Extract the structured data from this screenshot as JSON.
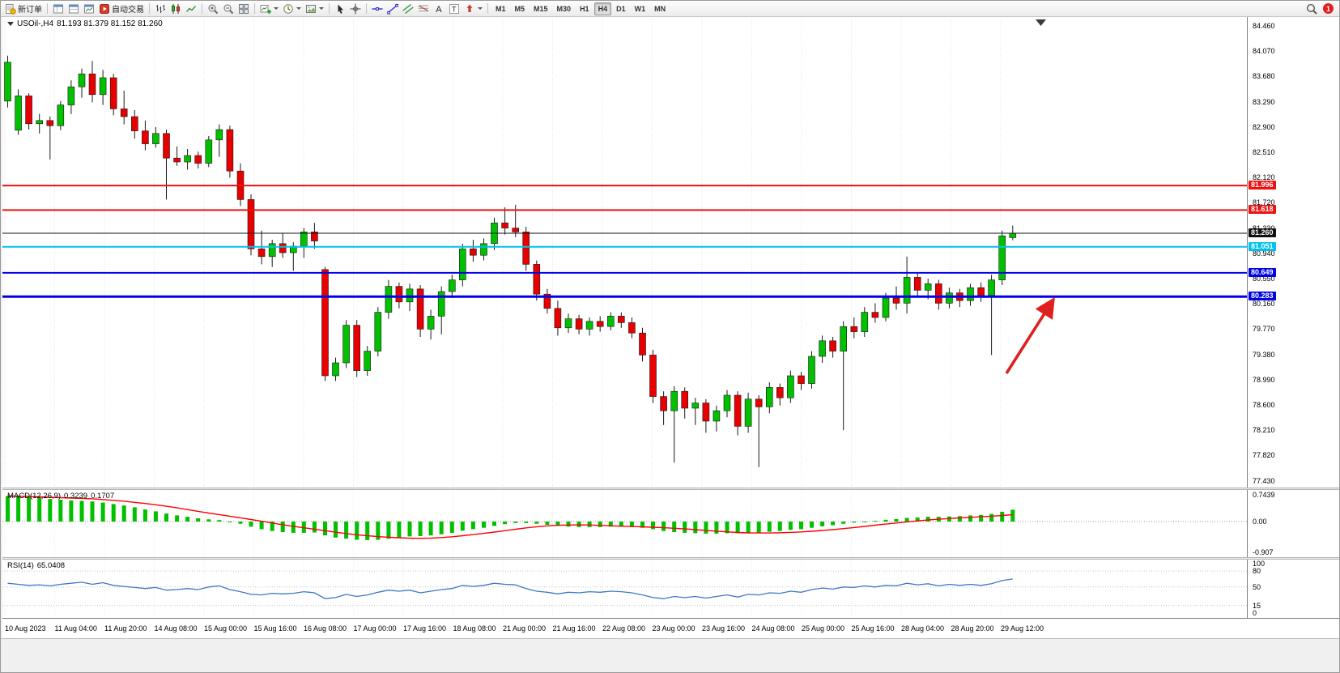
{
  "colors": {
    "candle_up": "#00C000",
    "candle_down": "#E80000",
    "macd_hist": "#00C000",
    "macd_signal": "#FF0000",
    "rsi_line": "#3C78C8",
    "arrow": "#E02020",
    "line_red": "#EE1111",
    "line_cyan": "#00C0EF",
    "line_blue": "#0000E6",
    "line_current": "#111111"
  },
  "toolbar": {
    "badge": "1",
    "items": [
      {
        "name": "new-order-button",
        "icon": "new-order",
        "label": "新订单"
      },
      {
        "name": "separator"
      },
      {
        "name": "market-watch-button",
        "icon": "window"
      },
      {
        "name": "navigator-button",
        "icon": "window2"
      },
      {
        "name": "terminal-button",
        "icon": "window3"
      },
      {
        "name": "autotrade-button",
        "icon": "autotrade",
        "label": "自动交易"
      },
      {
        "name": "separator"
      },
      {
        "name": "bar-chart-button",
        "icon": "bars"
      },
      {
        "name": "candlestick-chart-button",
        "icon": "candles"
      },
      {
        "name": "line-chart-button",
        "icon": "line"
      },
      {
        "name": "separator"
      },
      {
        "name": "zoom-in-button",
        "icon": "zoom-in"
      },
      {
        "name": "zoom-out-button",
        "icon": "zoom-out"
      },
      {
        "name": "tile-windows-button",
        "icon": "tile"
      },
      {
        "name": "separator"
      },
      {
        "name": "new-chart-button",
        "icon": "new-chart",
        "caret": true
      },
      {
        "name": "periods-button",
        "icon": "clock",
        "caret": true
      },
      {
        "name": "indicators-button",
        "icon": "template",
        "ca ret": false,
        "caret": true
      },
      {
        "name": "separator"
      },
      {
        "name": "cursor-button",
        "icon": "cursor"
      },
      {
        "name": "crosshair-button",
        "icon": "crosshair"
      },
      {
        "name": "separator"
      },
      {
        "name": "horizontal-line-button",
        "icon": "hline"
      },
      {
        "name": "trendline-button",
        "icon": "trendline"
      },
      {
        "name": "equidistant-channel-button",
        "icon": "channel"
      },
      {
        "name": "fibonacci-button",
        "icon": "fibo"
      },
      {
        "name": "text-button",
        "icon": "textA"
      },
      {
        "name": "text-label-button",
        "icon": "textT"
      },
      {
        "name": "arrows-button",
        "icon": "shapes",
        "caret": true
      },
      {
        "name": "separator"
      }
    ],
    "timeframes": [
      "M1",
      "M5",
      "M15",
      "M30",
      "H1",
      "H4",
      "D1",
      "W1",
      "MN"
    ],
    "active_timeframe": "H4"
  },
  "header": {
    "symbol": "USOil-,H4",
    "ohlc": "81.193 81.379 81.152 81.260"
  },
  "price_axis": {
    "ticks": [
      "84.460",
      "84.070",
      "83.680",
      "83.290",
      "82.900",
      "82.510",
      "82.120",
      "81.720",
      "81.330",
      "80.940",
      "80.550",
      "80.160",
      "79.770",
      "79.380",
      "78.990",
      "78.600",
      "78.210",
      "77.820",
      "77.430"
    ]
  },
  "time_axis": {
    "ticks": [
      "10 Aug 2023",
      "11 Aug 04:00",
      "11 Aug 20:00",
      "14 Aug 08:00",
      "15 Aug 00:00",
      "15 Aug 16:00",
      "16 Aug 08:00",
      "17 Aug 00:00",
      "17 Aug 16:00",
      "18 Aug 08:00",
      "21 Aug 00:00",
      "21 Aug 16:00",
      "22 Aug 08:00",
      "23 Aug 00:00",
      "23 Aug 16:00",
      "24 Aug 08:00",
      "25 Aug 00:00",
      "25 Aug 16:00",
      "28 Aug 04:00",
      "28 Aug 20:00",
      "29 Aug 12:00"
    ]
  },
  "hlines": [
    {
      "label": "81.996",
      "price": 81.996,
      "color": "#EE1111",
      "width": 2
    },
    {
      "label": "81.618",
      "price": 81.618,
      "color": "#EE1111",
      "width": 2
    },
    {
      "label": "81.260",
      "price": 81.26,
      "color": "#111111",
      "width": 1
    },
    {
      "label": "81.051",
      "price": 81.051,
      "color": "#00C0EF",
      "width": 2
    },
    {
      "label": "80.649",
      "price": 80.649,
      "color": "#0000E6",
      "width": 2
    },
    {
      "label": "80.283",
      "price": 80.283,
      "color": "#0000E6",
      "width": 3
    }
  ],
  "candles": [
    [
      83.3,
      84.0,
      83.2,
      83.9
    ],
    [
      82.85,
      83.48,
      82.78,
      83.38
    ],
    [
      83.38,
      83.42,
      82.86,
      82.95
    ],
    [
      82.95,
      83.1,
      82.8,
      83.0
    ],
    [
      83.0,
      83.06,
      82.4,
      82.92
    ],
    [
      82.92,
      83.3,
      82.85,
      83.24
    ],
    [
      83.24,
      83.62,
      83.1,
      83.52
    ],
    [
      83.52,
      83.8,
      83.35,
      83.72
    ],
    [
      83.72,
      83.92,
      83.28,
      83.4
    ],
    [
      83.4,
      83.78,
      83.24,
      83.66
    ],
    [
      83.66,
      83.72,
      83.08,
      83.18
    ],
    [
      83.18,
      83.46,
      82.94,
      83.06
    ],
    [
      83.06,
      83.16,
      82.72,
      82.84
    ],
    [
      82.84,
      83.0,
      82.54,
      82.64
    ],
    [
      82.64,
      82.9,
      82.58,
      82.8
    ],
    [
      82.8,
      82.86,
      81.78,
      82.42
    ],
    [
      82.42,
      82.6,
      82.3,
      82.36
    ],
    [
      82.36,
      82.56,
      82.24,
      82.46
    ],
    [
      82.46,
      82.52,
      82.26,
      82.34
    ],
    [
      82.34,
      82.76,
      82.28,
      82.7
    ],
    [
      82.7,
      82.94,
      82.44,
      82.86
    ],
    [
      82.86,
      82.92,
      82.12,
      82.22
    ],
    [
      82.22,
      82.34,
      81.68,
      81.78
    ],
    [
      81.78,
      81.86,
      80.92,
      81.02
    ],
    [
      81.02,
      81.3,
      80.78,
      80.9
    ],
    [
      80.9,
      81.16,
      80.74,
      81.1
    ],
    [
      81.1,
      81.26,
      80.88,
      80.96
    ],
    [
      80.96,
      81.12,
      80.68,
      81.06
    ],
    [
      81.06,
      81.34,
      80.88,
      81.28
    ],
    [
      81.28,
      81.42,
      81.02,
      81.14
    ],
    [
      80.7,
      80.74,
      78.98,
      79.06
    ],
    [
      79.06,
      79.34,
      78.98,
      79.26
    ],
    [
      79.26,
      79.92,
      79.18,
      79.84
    ],
    [
      79.84,
      79.92,
      79.04,
      79.14
    ],
    [
      79.14,
      79.52,
      79.06,
      79.44
    ],
    [
      79.44,
      80.12,
      79.36,
      80.04
    ],
    [
      80.04,
      80.54,
      79.94,
      80.44
    ],
    [
      80.44,
      80.5,
      80.1,
      80.2
    ],
    [
      80.2,
      80.48,
      80.06,
      80.4
    ],
    [
      80.4,
      80.46,
      79.66,
      79.78
    ],
    [
      79.78,
      80.08,
      79.62,
      79.98
    ],
    [
      79.98,
      80.44,
      79.7,
      80.36
    ],
    [
      80.36,
      80.62,
      80.26,
      80.54
    ],
    [
      80.54,
      81.1,
      80.44,
      81.02
    ],
    [
      81.02,
      81.16,
      80.82,
      80.92
    ],
    [
      80.92,
      81.18,
      80.84,
      81.1
    ],
    [
      81.1,
      81.5,
      81.0,
      81.42
    ],
    [
      81.42,
      81.66,
      81.24,
      81.34
    ],
    [
      81.34,
      81.7,
      81.2,
      81.28
    ],
    [
      81.28,
      81.36,
      80.68,
      80.78
    ],
    [
      80.78,
      80.84,
      80.22,
      80.32
    ],
    [
      80.32,
      80.4,
      80.02,
      80.1
    ],
    [
      80.1,
      80.22,
      79.68,
      79.8
    ],
    [
      79.8,
      80.02,
      79.72,
      79.94
    ],
    [
      79.94,
      80.0,
      79.7,
      79.78
    ],
    [
      79.78,
      79.96,
      79.68,
      79.9
    ],
    [
      79.9,
      79.98,
      79.74,
      79.82
    ],
    [
      79.82,
      80.04,
      79.76,
      79.98
    ],
    [
      79.98,
      80.04,
      79.8,
      79.88
    ],
    [
      79.88,
      79.96,
      79.64,
      79.72
    ],
    [
      79.72,
      79.8,
      79.28,
      79.38
    ],
    [
      79.38,
      79.46,
      78.64,
      78.74
    ],
    [
      78.74,
      78.82,
      78.3,
      78.52
    ],
    [
      78.52,
      78.9,
      77.72,
      78.82
    ],
    [
      78.82,
      78.88,
      78.4,
      78.56
    ],
    [
      78.56,
      78.72,
      78.3,
      78.64
    ],
    [
      78.64,
      78.7,
      78.18,
      78.36
    ],
    [
      78.36,
      78.6,
      78.2,
      78.52
    ],
    [
      78.52,
      78.84,
      78.42,
      78.76
    ],
    [
      78.76,
      78.82,
      78.14,
      78.28
    ],
    [
      78.28,
      78.8,
      78.18,
      78.7
    ],
    [
      78.7,
      78.76,
      77.65,
      78.58
    ],
    [
      78.58,
      78.96,
      78.48,
      78.88
    ],
    [
      78.88,
      78.94,
      78.6,
      78.72
    ],
    [
      78.72,
      79.14,
      78.64,
      79.06
    ],
    [
      79.06,
      79.12,
      78.84,
      78.94
    ],
    [
      78.94,
      79.44,
      78.86,
      79.36
    ],
    [
      79.36,
      79.68,
      79.26,
      79.6
    ],
    [
      79.6,
      79.66,
      79.34,
      79.44
    ],
    [
      79.44,
      79.9,
      78.22,
      79.82
    ],
    [
      79.82,
      79.96,
      79.64,
      79.74
    ],
    [
      79.74,
      80.12,
      79.66,
      80.04
    ],
    [
      80.04,
      80.18,
      79.88,
      79.96
    ],
    [
      79.96,
      80.34,
      79.9,
      80.26
    ],
    [
      80.26,
      80.44,
      80.08,
      80.18
    ],
    [
      80.18,
      80.9,
      80.02,
      80.58
    ],
    [
      80.58,
      80.64,
      80.28,
      80.38
    ],
    [
      80.38,
      80.56,
      80.24,
      80.48
    ],
    [
      80.48,
      80.54,
      80.08,
      80.18
    ],
    [
      80.18,
      80.42,
      80.1,
      80.34
    ],
    [
      80.34,
      80.4,
      80.12,
      80.22
    ],
    [
      80.22,
      80.48,
      80.14,
      80.42
    ],
    [
      80.42,
      80.5,
      80.2,
      80.3
    ],
    [
      80.3,
      80.62,
      79.38,
      80.54
    ],
    [
      80.54,
      81.3,
      80.46,
      81.22
    ],
    [
      81.193,
      81.379,
      81.152,
      81.26
    ]
  ],
  "macd": {
    "title": "MACD(12,26,9)",
    "value1": "0.3239",
    "value2": "0.1707",
    "axis": [
      {
        "label": "0.7439",
        "value": 0.7439
      },
      {
        "label": "0.00",
        "value": 0
      },
      {
        "label": "-0.907",
        "value": -0.907
      }
    ],
    "histogram": [
      0.7,
      0.69,
      0.67,
      0.65,
      0.62,
      0.6,
      0.58,
      0.57,
      0.55,
      0.52,
      0.48,
      0.44,
      0.39,
      0.33,
      0.28,
      0.22,
      0.17,
      0.13,
      0.09,
      0.06,
      0.04,
      0.0,
      -0.06,
      -0.14,
      -0.21,
      -0.26,
      -0.29,
      -0.31,
      -0.31,
      -0.3,
      -0.38,
      -0.44,
      -0.47,
      -0.5,
      -0.51,
      -0.5,
      -0.47,
      -0.44,
      -0.41,
      -0.4,
      -0.38,
      -0.35,
      -0.31,
      -0.25,
      -0.21,
      -0.17,
      -0.12,
      -0.07,
      -0.04,
      -0.04,
      -0.06,
      -0.09,
      -0.12,
      -0.14,
      -0.15,
      -0.15,
      -0.15,
      -0.14,
      -0.14,
      -0.15,
      -0.17,
      -0.21,
      -0.26,
      -0.29,
      -0.31,
      -0.32,
      -0.33,
      -0.33,
      -0.32,
      -0.32,
      -0.31,
      -0.3,
      -0.28,
      -0.26,
      -0.23,
      -0.21,
      -0.17,
      -0.13,
      -0.1,
      -0.06,
      -0.03,
      0.0,
      0.02,
      0.05,
      0.07,
      0.1,
      0.11,
      0.13,
      0.13,
      0.14,
      0.15,
      0.17,
      0.18,
      0.21,
      0.27,
      0.3239
    ]
  },
  "rsi": {
    "title": "RSI(14)",
    "value": "65.0408",
    "axis": [
      {
        "label": "100",
        "value": 100
      },
      {
        "label": "80",
        "value": 80
      },
      {
        "label": "50",
        "value": 50
      },
      {
        "label": "15",
        "value": 15
      },
      {
        "label": "0",
        "value": 0
      }
    ],
    "levels": [
      80,
      50,
      15
    ],
    "values": [
      57,
      55,
      53,
      54,
      52,
      55,
      57,
      59,
      55,
      58,
      53,
      51,
      49,
      47,
      49,
      44,
      45,
      47,
      45,
      50,
      52,
      45,
      41,
      36,
      35,
      38,
      37,
      38,
      41,
      39,
      28,
      30,
      36,
      32,
      35,
      40,
      44,
      42,
      44,
      39,
      42,
      45,
      47,
      53,
      51,
      53,
      57,
      55,
      54,
      47,
      42,
      40,
      37,
      40,
      39,
      41,
      40,
      42,
      41,
      39,
      35,
      30,
      28,
      32,
      30,
      32,
      29,
      32,
      35,
      31,
      36,
      35,
      39,
      38,
      42,
      40,
      45,
      48,
      46,
      50,
      49,
      52,
      50,
      53,
      52,
      57,
      54,
      56,
      52,
      55,
      53,
      55,
      53,
      56,
      62,
      65.04
    ]
  }
}
